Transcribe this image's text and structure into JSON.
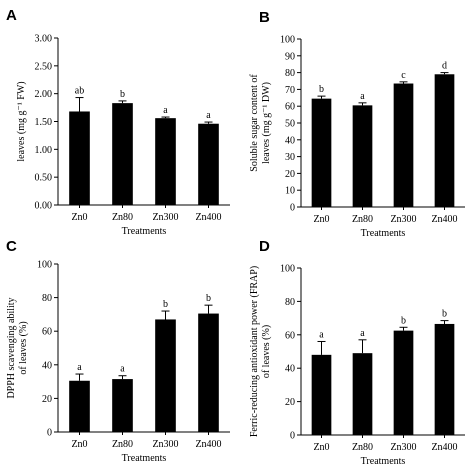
{
  "chart_data": [
    {
      "type": "bar",
      "panel_label": "A",
      "categories": [
        "Zn0",
        "Zn80",
        "Zn300",
        "Zn400"
      ],
      "values": [
        1.68,
        1.83,
        1.56,
        1.46
      ],
      "errors": [
        0.25,
        0.04,
        0.02,
        0.03
      ],
      "significance": [
        "ab",
        "b",
        "a",
        "a"
      ],
      "xlabel": "Treatments",
      "ylabel": "leaves (mg g⁻¹ FW)",
      "ylim": [
        0,
        3.0
      ],
      "yticks": [
        "0.00",
        "0.50",
        "1.00",
        "1.50",
        "2.00",
        "2.50",
        "3.00"
      ],
      "bar_color": "#000000",
      "grid": false
    },
    {
      "type": "bar",
      "panel_label": "B",
      "categories": [
        "Zn0",
        "Zn80",
        "Zn300",
        "Zn400"
      ],
      "values": [
        64.5,
        60.5,
        73.5,
        79.0
      ],
      "errors": [
        1.5,
        1.5,
        1.0,
        1.0
      ],
      "significance": [
        "b",
        "a",
        "c",
        "d"
      ],
      "xlabel": "Treatments",
      "ylabel": "Soluble sugar content of leaves (mg g⁻¹ DW)",
      "ylim": [
        0,
        100
      ],
      "yticks": [
        "0",
        "10",
        "20",
        "30",
        "40",
        "50",
        "60",
        "70",
        "80",
        "90",
        "100"
      ],
      "bar_color": "#000000",
      "grid": false
    },
    {
      "type": "bar",
      "panel_label": "C",
      "categories": [
        "Zn0",
        "Zn80",
        "Zn300",
        "Zn400"
      ],
      "values": [
        30.5,
        31.5,
        67.0,
        70.5
      ],
      "errors": [
        4.0,
        2.0,
        5.0,
        5.0
      ],
      "significance": [
        "a",
        "a",
        "b",
        "b"
      ],
      "xlabel": "Treatments",
      "ylabel": "DPPH scavenging ability of leaves (%)",
      "ylim": [
        0,
        100
      ],
      "yticks": [
        "0",
        "20",
        "40",
        "60",
        "80",
        "100"
      ],
      "bar_color": "#000000",
      "grid": false
    },
    {
      "type": "bar",
      "panel_label": "D",
      "categories": [
        "Zn0",
        "Zn80",
        "Zn300",
        "Zn400"
      ],
      "values": [
        48.0,
        49.0,
        62.5,
        66.5
      ],
      "errors": [
        8.0,
        8.0,
        2.0,
        2.0
      ],
      "significance": [
        "a",
        "a",
        "b",
        "b"
      ],
      "xlabel": "Treatments",
      "ylabel": "Ferric-reducing antioxidant power (FRAP) of leaves (%)",
      "ylim": [
        0,
        100
      ],
      "yticks": [
        "0",
        "20",
        "40",
        "60",
        "80",
        "100"
      ],
      "bar_color": "#000000",
      "grid": false
    }
  ]
}
